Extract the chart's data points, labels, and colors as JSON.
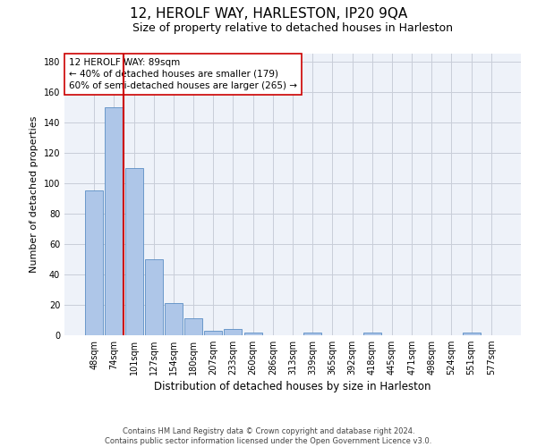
{
  "title": "12, HEROLF WAY, HARLESTON, IP20 9QA",
  "subtitle": "Size of property relative to detached houses in Harleston",
  "xlabel": "Distribution of detached houses by size in Harleston",
  "ylabel": "Number of detached properties",
  "bar_labels": [
    "48sqm",
    "74sqm",
    "101sqm",
    "127sqm",
    "154sqm",
    "180sqm",
    "207sqm",
    "233sqm",
    "260sqm",
    "286sqm",
    "313sqm",
    "339sqm",
    "365sqm",
    "392sqm",
    "418sqm",
    "445sqm",
    "471sqm",
    "498sqm",
    "524sqm",
    "551sqm",
    "577sqm"
  ],
  "bar_values": [
    95,
    150,
    110,
    50,
    21,
    11,
    3,
    4,
    2,
    0,
    0,
    2,
    0,
    0,
    2,
    0,
    0,
    0,
    0,
    2,
    0
  ],
  "bar_color": "#aec6e8",
  "bar_edgecolor": "#5b8ec4",
  "vline_x": 1.5,
  "vline_color": "#cc0000",
  "annotation_line1": "12 HEROLF WAY: 89sqm",
  "annotation_line2": "← 40% of detached houses are smaller (179)",
  "annotation_line3": "60% of semi-detached houses are larger (265) →",
  "ylim": [
    0,
    185
  ],
  "yticks": [
    0,
    20,
    40,
    60,
    80,
    100,
    120,
    140,
    160,
    180
  ],
  "bg_color": "#eef2f9",
  "grid_color": "#c8cdd8",
  "footer_text": "Contains HM Land Registry data © Crown copyright and database right 2024.\nContains public sector information licensed under the Open Government Licence v3.0.",
  "title_fontsize": 11,
  "subtitle_fontsize": 9,
  "xlabel_fontsize": 8.5,
  "ylabel_fontsize": 8,
  "annotation_fontsize": 7.5,
  "tick_fontsize": 7
}
